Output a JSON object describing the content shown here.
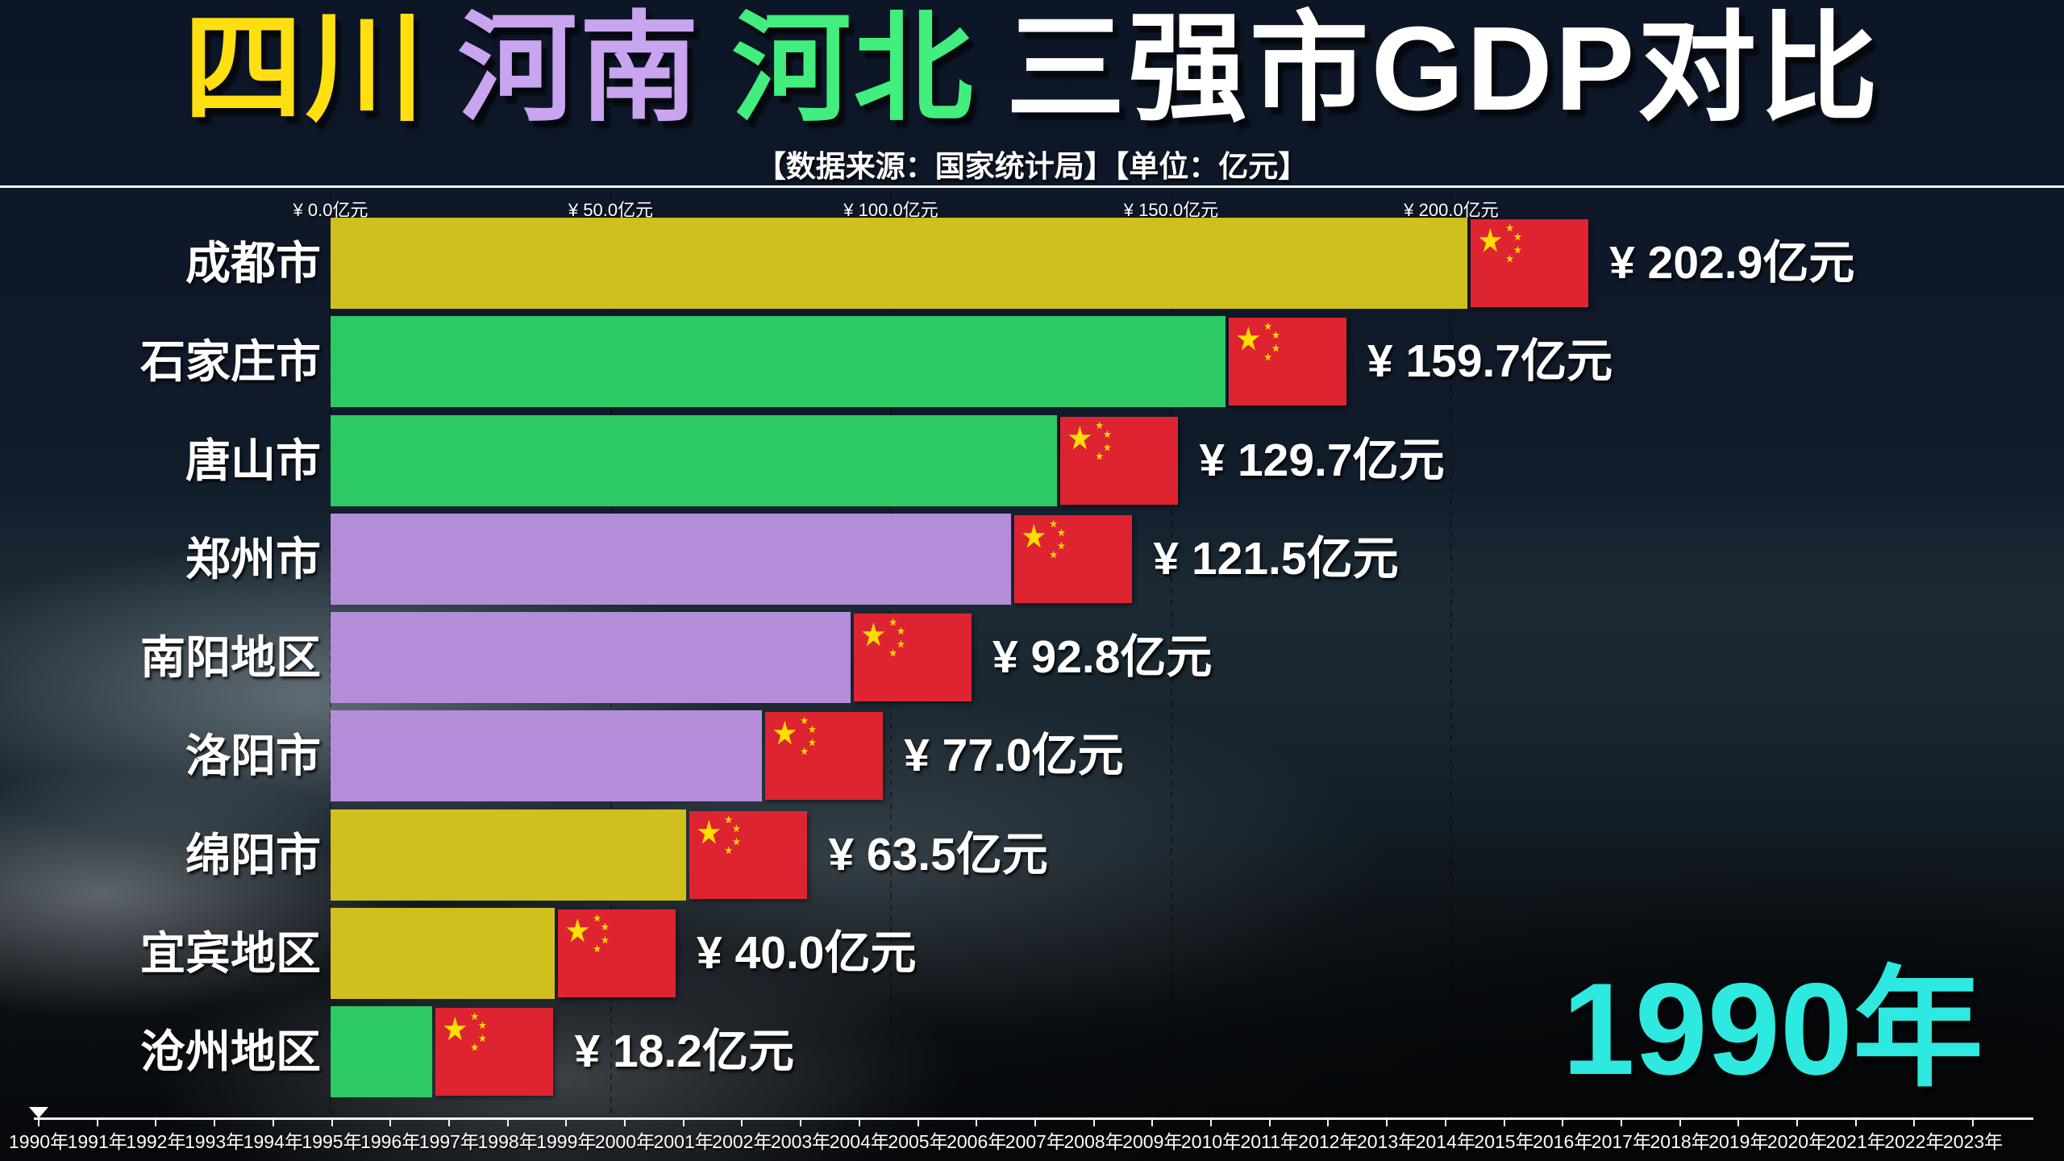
{
  "title": {
    "segments": [
      {
        "text": "四川",
        "color": "#ffdf10"
      },
      {
        "text": "河南",
        "color": "#c9a4ef"
      },
      {
        "text": "河北",
        "color": "#42ee7e"
      },
      {
        "text": "三强市GDP对比",
        "color": "#ffffff"
      }
    ]
  },
  "subtitle": "【数据来源：国家统计局】【单位：亿元】",
  "chart_data": {
    "type": "bar",
    "orientation": "horizontal",
    "title": "四川 河南 河北 三强市GDP对比",
    "subtitle": "【数据来源：国家统计局】【单位：亿元】",
    "unit": "亿元",
    "xlim": [
      0,
      250
    ],
    "grid": "vertical-dashed",
    "x_ticks": [
      {
        "label": "¥ 0.0亿元",
        "value": 0
      },
      {
        "label": "¥ 50.0亿元",
        "value": 50
      },
      {
        "label": "¥ 100.0亿元",
        "value": 100
      },
      {
        "label": "¥ 150.0亿元",
        "value": 150
      },
      {
        "label": "¥ 200.0亿元",
        "value": 200
      }
    ],
    "categories": [
      "成都市",
      "石家庄市",
      "唐山市",
      "郑州市",
      "南阳地区",
      "洛阳市",
      "绵阳市",
      "宜宾地区",
      "沧州地区"
    ],
    "values": [
      202.9,
      159.7,
      129.7,
      121.5,
      92.8,
      77.0,
      63.5,
      40.0,
      18.2
    ],
    "value_labels": [
      "¥ 202.9亿元",
      "¥ 159.7亿元",
      "¥ 129.7亿元",
      "¥ 121.5亿元",
      "¥ 92.8亿元",
      "¥ 77.0亿元",
      "¥ 63.5亿元",
      "¥ 40.0亿元",
      "¥ 18.2亿元"
    ],
    "provinces": [
      "四川",
      "河北",
      "河北",
      "河南",
      "河南",
      "河南",
      "四川",
      "四川",
      "河北"
    ],
    "series_colors": {
      "四川": "#cfc01d",
      "河南": "#b48dd8",
      "河北": "#2cc964"
    },
    "bar_end_icon": "china-flag",
    "legend_position": "in-title",
    "current_year": "1990年"
  },
  "timeline": {
    "years": [
      "1990年",
      "1991年",
      "1992年",
      "1993年",
      "1994年",
      "1995年",
      "1996年",
      "1997年",
      "1998年",
      "1999年",
      "2000年",
      "2001年",
      "2002年",
      "2003年",
      "2004年",
      "2005年",
      "2006年",
      "2007年",
      "2008年",
      "2009年",
      "2010年",
      "2011年",
      "2012年",
      "2013年",
      "2014年",
      "2015年",
      "2016年",
      "2017年",
      "2018年",
      "2019年",
      "2020年",
      "2021年",
      "2022年",
      "2023年"
    ],
    "marker_year_index": 0,
    "current_year": "1990年"
  },
  "icons": {
    "china_flag": {
      "field_red": "#de2430",
      "star_yellow": "#ffde00"
    }
  },
  "colors": {
    "background_top": "#0d1626",
    "axis_line": "#f2f4f6",
    "current_year_cyan": "#2ee9df",
    "text": "#ffffff"
  }
}
